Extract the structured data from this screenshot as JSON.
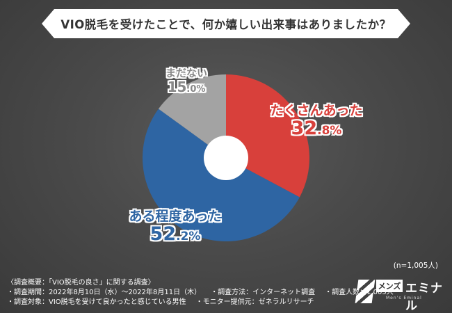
{
  "header": {
    "title": "VIO脱毛を受けたことで、何か嬉しい出来事はありましたか？"
  },
  "chart_data": {
    "type": "pie",
    "donut": true,
    "start_angle_deg": 0,
    "direction": "clockwise",
    "slices": [
      {
        "name": "たくさんあった",
        "value": 32.8,
        "pct_int": "32",
        "pct_dec": ".8%",
        "color": "#d8403b"
      },
      {
        "name": "ある程度あった",
        "value": 52.2,
        "pct_int": "52",
        "pct_dec": ".2%",
        "color": "#2e65a3"
      },
      {
        "name": "まだない",
        "value": 15.0,
        "pct_int": "15",
        "pct_dec": ".0%",
        "color": "#a3a3a3"
      }
    ]
  },
  "sample_size": "(n=1,005人)",
  "footer": {
    "overview": "〈調査概要：「VIO脱毛の良さ」に関する調査〉",
    "period": "・調査期間：2022年8月10日（水）～2022年8月11日（木）",
    "method": "・調査方法：インターネット調査",
    "respondents": "・調査人数：1,005人",
    "target": "・調査対象：VIO脱毛を受けて良かったと感じている男性",
    "provider": "・モニター提供元：ゼネラルリサーチ"
  },
  "logo": {
    "box_text": "メンズ",
    "name": "エミナル",
    "tagline": "Men's Eminal"
  }
}
